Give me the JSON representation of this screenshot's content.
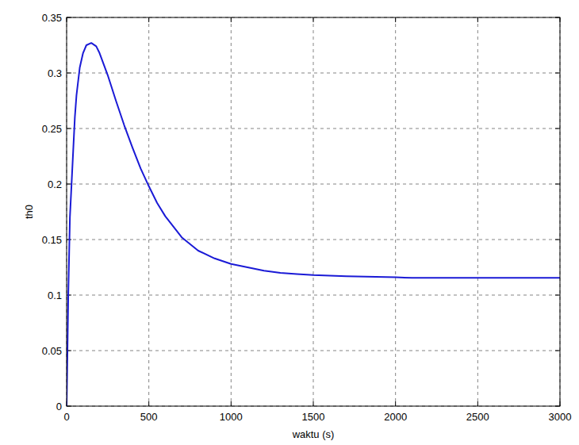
{
  "chart_data": {
    "type": "line",
    "x_label": "waktu (s)",
    "y_label": "th0",
    "x": [
      0,
      5,
      10,
      20,
      30,
      40,
      50,
      60,
      80,
      100,
      120,
      150,
      180,
      200,
      250,
      300,
      350,
      400,
      450,
      500,
      550,
      600,
      700,
      800,
      900,
      1000,
      1100,
      1200,
      1300,
      1400,
      1500,
      1700,
      2000,
      2100,
      2500,
      3000
    ],
    "values": [
      0,
      0.05,
      0.1,
      0.17,
      0.2,
      0.23,
      0.26,
      0.28,
      0.305,
      0.318,
      0.325,
      0.327,
      0.324,
      0.318,
      0.298,
      0.275,
      0.253,
      0.233,
      0.214,
      0.198,
      0.183,
      0.171,
      0.152,
      0.14,
      0.133,
      0.128,
      0.125,
      0.122,
      0.12,
      0.119,
      0.118,
      0.117,
      0.116,
      0.1155,
      0.1155,
      0.1155
    ],
    "color": "#1a1ad6",
    "xlim": [
      0,
      3000
    ],
    "xticks": [
      0,
      500,
      1000,
      1500,
      2000,
      2500,
      3000
    ],
    "ylim": [
      0,
      0.35
    ],
    "yticks": [
      0,
      0.05,
      0.1,
      0.15,
      0.2,
      0.25,
      0.3,
      0.35
    ],
    "grid": true
  }
}
